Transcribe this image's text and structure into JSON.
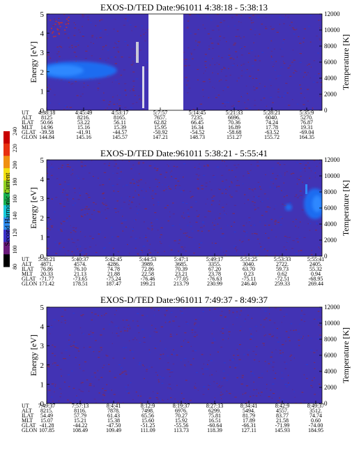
{
  "chart_data": [
    {
      "type": "heatmap",
      "title": "EXOS-D/TED  Date:961011  4:38:18 - 5:38:13",
      "ylabel": "Energy [eV]",
      "y2label": "Temperature [K]",
      "ylim": [
        0,
        5
      ],
      "y2lim": [
        0,
        12000
      ],
      "yticks": [
        "0",
        "1",
        "2",
        "3",
        "4",
        "5"
      ],
      "y2ticks": [
        "0",
        "2000",
        "4000",
        "6000",
        "8000",
        "10000",
        "12000"
      ],
      "data_gap": {
        "from": "4:53:17",
        "to": "5:7:57"
      },
      "row_labels": [
        "UT",
        "ALT",
        "ILAT",
        "MLT",
        "GLAT",
        "GLON"
      ],
      "columns": [
        [
          "4:38:18",
          "8125",
          "50.66",
          "14.96",
          "-39.58",
          "144.84"
        ],
        [
          "4:45:49",
          "8216.",
          "53.22",
          "15.16",
          "-41.91",
          "145.16"
        ],
        [
          "4:53:17",
          "8165.",
          "56.11",
          "15.39",
          "-44.57",
          "145.57"
        ],
        [
          "5:7:57",
          "7657.",
          "62.82",
          "15.95",
          "-50.92",
          "147.21"
        ],
        [
          "5:14:45",
          "7235.",
          "66.45",
          "16.34",
          "-54.52",
          "148.73"
        ],
        [
          "5:21:33",
          "6696.",
          "70.36",
          "16.89",
          "-58.68",
          "151.27"
        ],
        [
          "5:28:21",
          "6040.",
          "74.24",
          "17.78",
          "-63.52",
          "155.72"
        ],
        [
          "5:35:9",
          "5270.",
          "76.87",
          "19.31",
          "-69.04",
          "164.35"
        ]
      ]
    },
    {
      "type": "heatmap",
      "title": "EXOS-D/TED   Date:961011  5:38:21 - 5:55:41",
      "ylabel": "Energy [eV]",
      "y2label": "Temperature [K]",
      "ylim": [
        0,
        5
      ],
      "y2lim": [
        0,
        12000
      ],
      "yticks": [
        "0",
        "1",
        "2",
        "3",
        "4",
        "5"
      ],
      "y2ticks": [
        "0",
        "2000",
        "4000",
        "6000",
        "8000",
        "10000",
        "12000"
      ],
      "row_labels": [
        "UT",
        "ALT",
        "ILAT",
        "MLT",
        "GLAT",
        "GLON"
      ],
      "columns": [
        [
          "5:38:21",
          "4871.",
          "76.86",
          "20.33",
          "-71.77",
          "171.42"
        ],
        [
          "5:40:37",
          "4574.",
          "76.10",
          "21.13",
          "-73.65",
          "178.51"
        ],
        [
          "5:42:45",
          "4286.",
          "74.78",
          "21.88",
          "-75.24",
          "187.47"
        ],
        [
          "5:44:53",
          "3989.",
          "72.86",
          "22.58",
          "-76.46",
          "199.21"
        ],
        [
          "5:47:1",
          "3685.",
          "70.39",
          "23.21",
          "-77.05",
          "213.79"
        ],
        [
          "5:49:17",
          "3355.",
          "67.20",
          "23.78",
          "-76.63",
          "230.99"
        ],
        [
          "5:51:25",
          "3040.",
          "63.70",
          "0.23",
          "-75.11",
          "246.40"
        ],
        [
          "5:53:33",
          "2722.",
          "59.73",
          "0.62",
          "-72.51",
          "259.33"
        ],
        [
          "5:55:41",
          "2405.",
          "55.32",
          "0.94",
          "-68.95",
          "269.44"
        ]
      ]
    },
    {
      "type": "heatmap",
      "title": "EXOS-D/TED   Date:961011  7:49:37 - 8:49:37",
      "ylabel": "Energy [eV]",
      "y2label": "Temperature [K]",
      "ylim": [
        0,
        5
      ],
      "y2lim": [
        0,
        12000
      ],
      "yticks": [
        "0",
        "1",
        "2",
        "3",
        "4",
        "5"
      ],
      "y2ticks": [
        "0",
        "2000",
        "4000",
        "6000",
        "8000",
        "10000",
        "12000"
      ],
      "row_labels": [
        "UT",
        "ALT",
        "ILAT",
        "MLT",
        "GLAT",
        "GLON"
      ],
      "columns": [
        [
          "7:49:37",
          "8215.",
          "54.49",
          "15.07",
          "-41.28",
          "107.85"
        ],
        [
          "7:57:13",
          "8116.",
          "57.79",
          "15.21",
          "-44.22",
          "108.49"
        ],
        [
          "8:4:41",
          "7878.",
          "61.43",
          "15.38",
          "-47.50",
          "109.49"
        ],
        [
          "8:12:9",
          "7498.",
          "65.56",
          "15.60",
          "-51.25",
          "111.09"
        ],
        [
          "8:19:37",
          "6976.",
          "70.27",
          "15.92",
          "-55.56",
          "113.73"
        ],
        [
          "8:27:13",
          "6299.",
          "75.81",
          "16.51",
          "-60.64",
          "118.39"
        ],
        [
          "8:34:41",
          "5494.",
          "81.79",
          "17.89",
          "-66.31",
          "127.11"
        ],
        [
          "8:42:9",
          "4557.",
          "83.77",
          "21.58",
          "-71.99",
          "145.93"
        ],
        [
          "8:49:37",
          "3512.",
          "74.74",
          "0.60",
          "-74.00",
          "184.95"
        ]
      ]
    }
  ],
  "colorbar": {
    "label": "Second Harmonic Current",
    "ticks": [
      "80",
      "100",
      "120",
      "140",
      "160",
      "180",
      "200",
      "220",
      "240"
    ],
    "range": [
      80,
      240
    ]
  },
  "colors": {
    "background": "#4233b4",
    "speckle": "#7a2a5e",
    "enhancement": "#1f6cf0",
    "gap": "#ffffff"
  }
}
